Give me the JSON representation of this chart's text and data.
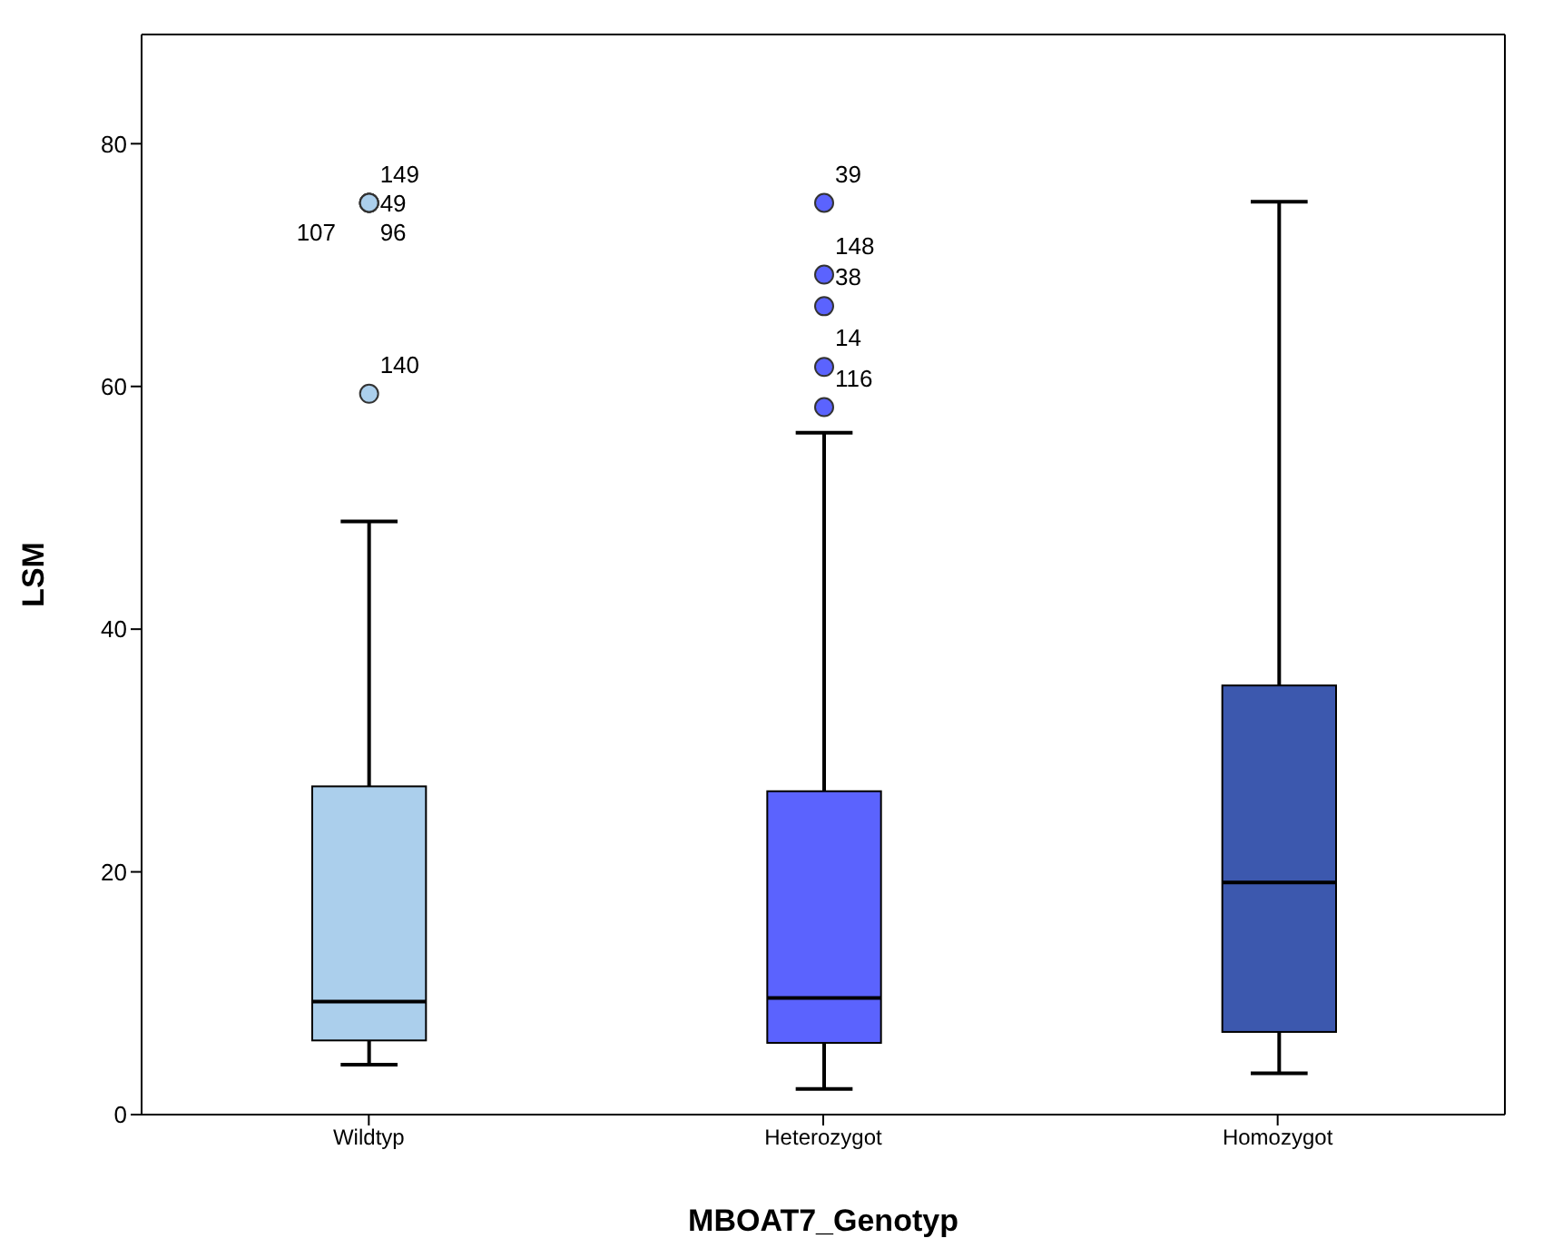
{
  "chart_data": {
    "type": "box",
    "xlabel": "MBOAT7_Genotyp",
    "ylabel": "LSM",
    "categories": [
      "Wildtyp",
      "Heterozygot",
      "Homozygot"
    ],
    "colors": [
      "#abcfec",
      "#5b63fe",
      "#3c58ae"
    ],
    "boxes": [
      {
        "low": 4.1,
        "q1": 6.1,
        "median": 9.3,
        "q3": 27,
        "high": 48.8,
        "outliers": [
          75,
          75,
          75,
          75,
          59.3
        ]
      },
      {
        "low": 2.1,
        "q1": 5.9,
        "median": 9.6,
        "q3": 26.6,
        "high": 56.1,
        "outliers": [
          75,
          69.1,
          66.5,
          61.5,
          58.2
        ]
      },
      {
        "low": 3.4,
        "q1": 6.8,
        "median": 19.1,
        "q3": 35.3,
        "high": 75.1
      }
    ],
    "ylim": [
      0,
      89
    ],
    "yticks": [
      0,
      20,
      40,
      60,
      80
    ],
    "annotations": [
      "149",
      "49",
      "107",
      "96",
      "140",
      "39",
      "148",
      "38",
      "14",
      "116"
    ]
  }
}
